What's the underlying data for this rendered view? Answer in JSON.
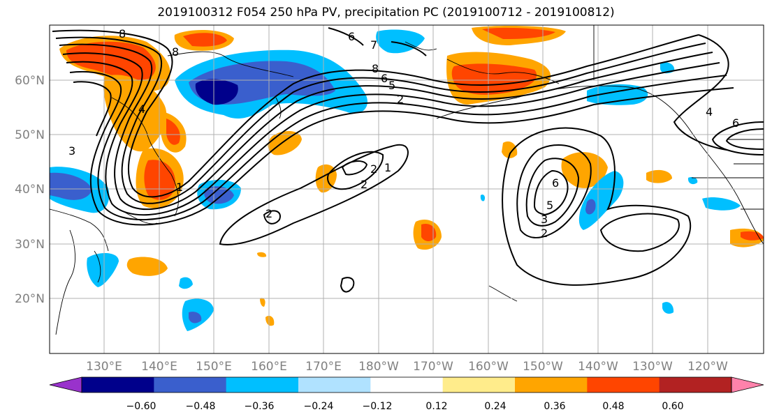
{
  "title": "2019100312 F054 250 hPa PV, precipitation PC (2019100712 - 2019100812)",
  "map": {
    "lat_labels": [
      "60°N",
      "50°N",
      "40°N",
      "30°N",
      "20°N"
    ],
    "lon_labels": [
      "130°E",
      "140°E",
      "150°E",
      "160°E",
      "170°E",
      "180°W",
      "170°W",
      "160°W",
      "150°W",
      "140°W",
      "130°W",
      "120°W"
    ],
    "contour_labels": [
      "8",
      "8",
      "6",
      "7",
      "8",
      "6",
      "5",
      "2",
      "3",
      "4",
      "1",
      "2",
      "2",
      "2",
      "1",
      "6",
      "5",
      "3",
      "2",
      "4",
      "6"
    ]
  },
  "colorbar": {
    "tick_labels": [
      "−0.60",
      "−0.48",
      "−0.36",
      "−0.24",
      "−0.12",
      "0.12",
      "0.24",
      "0.36",
      "0.48",
      "0.60"
    ],
    "colors": [
      "#9932cc",
      "#00008b",
      "#3a5fcd",
      "#00bfff",
      "#b0e2ff",
      "#ffffff",
      "#ffec8b",
      "#ffa500",
      "#ff4500",
      "#b22222",
      "#ff82ab"
    ]
  }
}
